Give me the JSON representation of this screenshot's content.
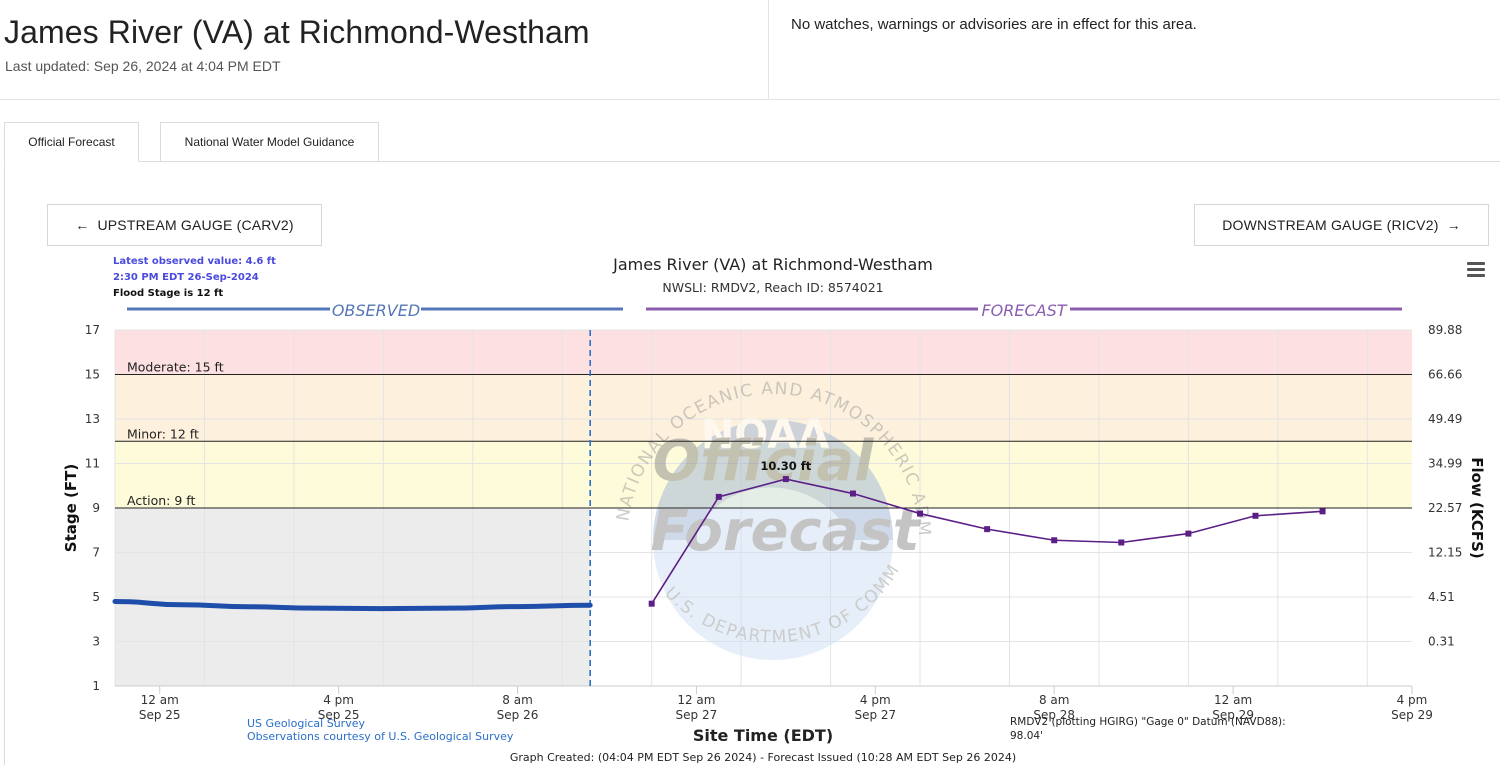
{
  "header": {
    "title": "James River (VA) at Richmond-Westham",
    "last_updated": "Last updated: Sep 26, 2024 at 4:04 PM EDT",
    "alerts": "No watches, warnings or advisories are in effect for this area."
  },
  "tabs": [
    {
      "label": "Official Forecast",
      "active": true
    },
    {
      "label": "National Water Model Guidance",
      "active": false
    }
  ],
  "nav": {
    "upstream_label": "UPSTREAM GAUGE (CARV2)",
    "upstream_icon": "arrow-left-icon",
    "downstream_label": "DOWNSTREAM GAUGE (RICV2)",
    "downstream_icon": "arrow-right-icon",
    "menu_icon": "hamburger-menu-icon"
  },
  "chart_data": {
    "type": "line",
    "title": "James River (VA) at Richmond-Westham",
    "subtitle": "NWSLI: RMDV2, Reach ID: 8574021",
    "info": {
      "latest_observed": "Latest observed value: 4.6 ft",
      "latest_time": "2:30 PM EDT 26-Sep-2024",
      "flood_stage": "Flood Stage is 12 ft"
    },
    "section_labels": {
      "observed": "OBSERVED",
      "forecast": "FORECAST"
    },
    "xlabel": "Site Time (EDT)",
    "ylabel": "Stage (FT)",
    "y2label": "Flow (KCFS)",
    "ylim": [
      1,
      17
    ],
    "xlim": [
      "2024-09-24 20:00",
      "2024-09-29 16:00"
    ],
    "y_ticks": [
      1,
      3,
      5,
      7,
      9,
      11,
      13,
      15,
      17
    ],
    "y2_ticks": [
      {
        "stage": 3,
        "label": "0.31"
      },
      {
        "stage": 5,
        "label": "4.51"
      },
      {
        "stage": 7,
        "label": "12.15"
      },
      {
        "stage": 9,
        "label": "22.57"
      },
      {
        "stage": 11,
        "label": "34.99"
      },
      {
        "stage": 13,
        "label": "49.49"
      },
      {
        "stage": 15,
        "label": "66.66"
      },
      {
        "stage": 17,
        "label": "89.88"
      }
    ],
    "x_ticks": [
      {
        "t": "2024-09-25 00:00",
        "line1": "12 am",
        "line2": "Sep 25"
      },
      {
        "t": "2024-09-25 16:00",
        "line1": "4 pm",
        "line2": "Sep 25"
      },
      {
        "t": "2024-09-26 08:00",
        "line1": "8 am",
        "line2": "Sep 26"
      },
      {
        "t": "2024-09-27 00:00",
        "line1": "12 am",
        "line2": "Sep 27"
      },
      {
        "t": "2024-09-27 16:00",
        "line1": "4 pm",
        "line2": "Sep 27"
      },
      {
        "t": "2024-09-28 08:00",
        "line1": "8 am",
        "line2": "Sep 28"
      },
      {
        "t": "2024-09-29 00:00",
        "line1": "12 am",
        "line2": "Sep 29"
      },
      {
        "t": "2024-09-29 16:00",
        "line1": "4 pm",
        "line2": "Sep 29"
      }
    ],
    "flood_categories": [
      {
        "label": "Moderate: 15 ft",
        "stage": 15
      },
      {
        "label": "Minor: 12 ft",
        "stage": 12
      },
      {
        "label": "Action: 9 ft",
        "stage": 9
      }
    ],
    "bands": [
      {
        "from": 15,
        "to": 17,
        "color": "#fde0e1"
      },
      {
        "from": 12,
        "to": 15,
        "color": "#fdf1dd"
      },
      {
        "from": 9,
        "to": 12,
        "color": "#fdfbd9"
      },
      {
        "from": 1,
        "to": 9,
        "color": "#ececec",
        "region": "observed"
      }
    ],
    "now": "2024-09-26 14:30",
    "series": [
      {
        "name": "observed",
        "color": "#1f4eaa",
        "points": [
          {
            "t": "2024-09-24 20:00",
            "y": 4.8
          },
          {
            "t": "2024-09-25 02:00",
            "y": 4.65
          },
          {
            "t": "2024-09-25 08:00",
            "y": 4.56
          },
          {
            "t": "2024-09-25 14:00",
            "y": 4.5
          },
          {
            "t": "2024-09-25 20:00",
            "y": 4.48
          },
          {
            "t": "2024-09-26 02:00",
            "y": 4.5
          },
          {
            "t": "2024-09-26 08:00",
            "y": 4.57
          },
          {
            "t": "2024-09-26 14:30",
            "y": 4.63
          }
        ]
      },
      {
        "name": "forecast",
        "color": "#5b1f86",
        "points": [
          {
            "t": "2024-09-26 20:00",
            "y": 4.7
          },
          {
            "t": "2024-09-27 02:00",
            "y": 9.5
          },
          {
            "t": "2024-09-27 08:00",
            "y": 10.3
          },
          {
            "t": "2024-09-27 14:00",
            "y": 9.65
          },
          {
            "t": "2024-09-27 20:00",
            "y": 8.75
          },
          {
            "t": "2024-09-28 02:00",
            "y": 8.05
          },
          {
            "t": "2024-09-28 08:00",
            "y": 7.55
          },
          {
            "t": "2024-09-28 14:00",
            "y": 7.45
          },
          {
            "t": "2024-09-28 20:00",
            "y": 7.85
          },
          {
            "t": "2024-09-29 02:00",
            "y": 8.65
          },
          {
            "t": "2024-09-29 08:00",
            "y": 8.85
          }
        ]
      }
    ],
    "peak_label": "10.30 ft",
    "watermark": {
      "line1": "Official",
      "line2": "Forecast",
      "seal_text_top": "NATIONAL OCEANIC AND ATMOSPHERIC ADMINISTRATION",
      "seal_text_bottom": "U.S. DEPARTMENT OF COMMERCE",
      "seal_center": "NOAA"
    },
    "footer": {
      "source_line1": "US Geological Survey",
      "source_line2": "Observations courtesy of U.S. Geological Survey",
      "datum": "RMDV2 (plotting HGIRG) \"Gage 0\" Datum (NAVD88):",
      "datum_value": "98.04'",
      "created": "Graph Created: (04:04 PM EDT Sep 26 2024) - Forecast Issued (10:28 AM EDT Sep 26 2024)"
    }
  }
}
